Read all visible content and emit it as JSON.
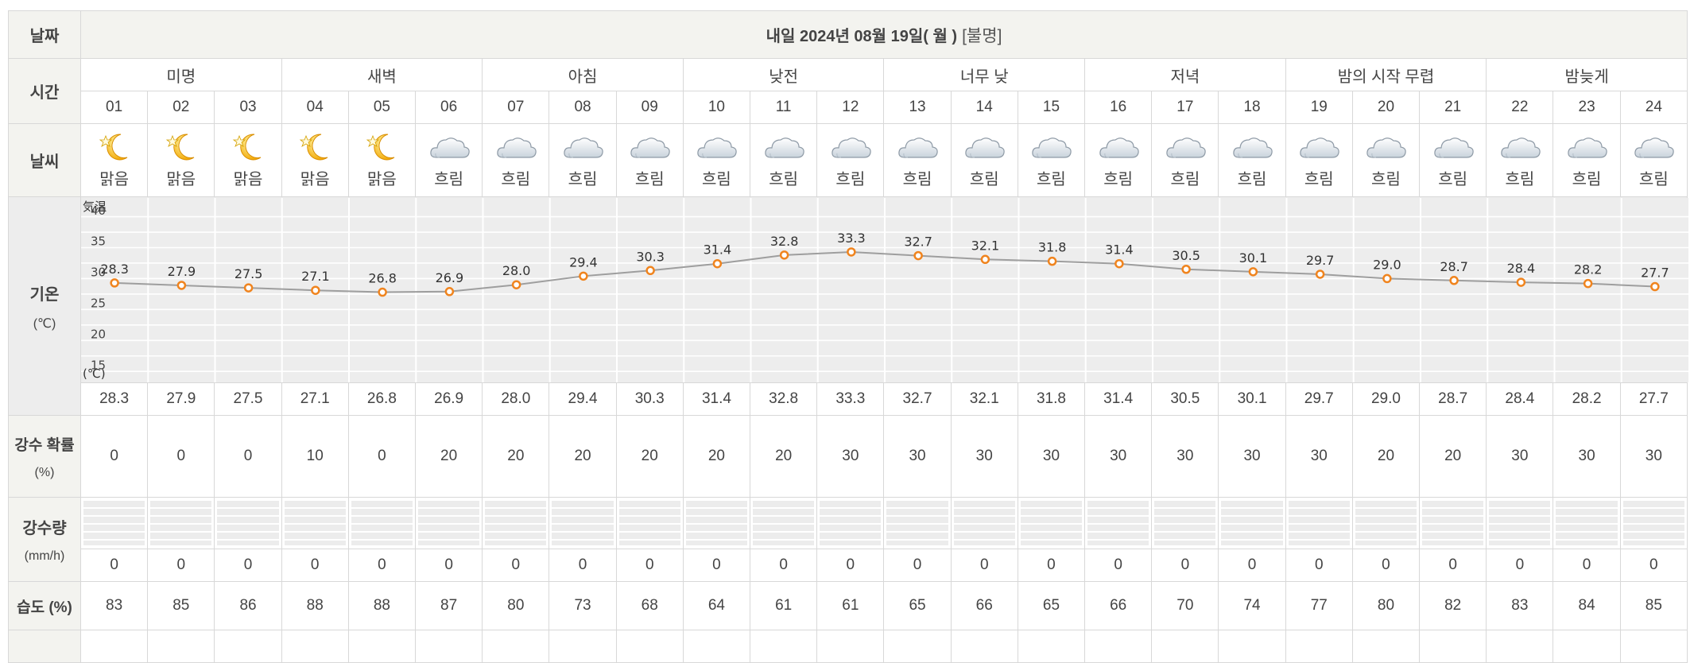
{
  "labels": {
    "date": "날짜",
    "time": "시간",
    "weather": "날씨",
    "temp": "기온",
    "temp_unit": "(℃)",
    "precip_prob": "강수 확률",
    "precip_prob_unit": "(%)",
    "precip": "강수량",
    "precip_unit": "(mm/h)",
    "humidity": "습도 (%)"
  },
  "header": {
    "date_text": "내일 2024년 08월 19일( 월 )",
    "condition": "[불명]"
  },
  "periods": [
    "미명",
    "새벽",
    "아침",
    "낮전",
    "너무 낮",
    "저녁",
    "밤의 시작 무렵",
    "밤늦게"
  ],
  "hours": [
    "01",
    "02",
    "03",
    "04",
    "05",
    "06",
    "07",
    "08",
    "09",
    "10",
    "11",
    "12",
    "13",
    "14",
    "15",
    "16",
    "17",
    "18",
    "19",
    "20",
    "21",
    "22",
    "23",
    "24"
  ],
  "weather": [
    {
      "icon": "moon-star-icon",
      "label": "맑음"
    },
    {
      "icon": "moon-star-icon",
      "label": "맑음"
    },
    {
      "icon": "moon-star-icon",
      "label": "맑음"
    },
    {
      "icon": "moon-star-icon",
      "label": "맑음"
    },
    {
      "icon": "moon-star-icon",
      "label": "맑음"
    },
    {
      "icon": "cloud-icon",
      "label": "흐림"
    },
    {
      "icon": "cloud-icon",
      "label": "흐림"
    },
    {
      "icon": "cloud-icon",
      "label": "흐림"
    },
    {
      "icon": "cloud-icon",
      "label": "흐림"
    },
    {
      "icon": "cloud-icon",
      "label": "흐림"
    },
    {
      "icon": "cloud-icon",
      "label": "흐림"
    },
    {
      "icon": "cloud-icon",
      "label": "흐림"
    },
    {
      "icon": "cloud-icon",
      "label": "흐림"
    },
    {
      "icon": "cloud-icon",
      "label": "흐림"
    },
    {
      "icon": "cloud-icon",
      "label": "흐림"
    },
    {
      "icon": "cloud-icon",
      "label": "흐림"
    },
    {
      "icon": "cloud-icon",
      "label": "흐림"
    },
    {
      "icon": "cloud-icon",
      "label": "흐림"
    },
    {
      "icon": "cloud-icon",
      "label": "흐림"
    },
    {
      "icon": "cloud-icon",
      "label": "흐림"
    },
    {
      "icon": "cloud-icon",
      "label": "흐림"
    },
    {
      "icon": "cloud-icon",
      "label": "흐림"
    },
    {
      "icon": "cloud-icon",
      "label": "흐림"
    },
    {
      "icon": "cloud-icon",
      "label": "흐림"
    }
  ],
  "temperatures": [
    "28.3",
    "27.9",
    "27.5",
    "27.1",
    "26.8",
    "26.9",
    "28.0",
    "29.4",
    "30.3",
    "31.4",
    "32.8",
    "33.3",
    "32.7",
    "32.1",
    "31.8",
    "31.4",
    "30.5",
    "30.1",
    "29.7",
    "29.0",
    "28.7",
    "28.4",
    "28.2",
    "27.7"
  ],
  "precip_probability": [
    "0",
    "0",
    "0",
    "10",
    "0",
    "20",
    "20",
    "20",
    "20",
    "20",
    "20",
    "30",
    "30",
    "30",
    "30",
    "30",
    "30",
    "30",
    "30",
    "20",
    "20",
    "30",
    "30",
    "30"
  ],
  "precip_amount": [
    "0",
    "0",
    "0",
    "0",
    "0",
    "0",
    "0",
    "0",
    "0",
    "0",
    "0",
    "0",
    "0",
    "0",
    "0",
    "0",
    "0",
    "0",
    "0",
    "0",
    "0",
    "0",
    "0",
    "0"
  ],
  "humidity": [
    "83",
    "85",
    "86",
    "88",
    "88",
    "87",
    "80",
    "73",
    "68",
    "64",
    "61",
    "61",
    "65",
    "66",
    "65",
    "66",
    "70",
    "74",
    "77",
    "80",
    "82",
    "83",
    "84",
    "85"
  ],
  "colors": {
    "header_bg": "#f3f3ef",
    "chart_bg": "#ededed",
    "line": "#9e9e9e",
    "marker": "#f0841e"
  },
  "chart_data": {
    "type": "line",
    "y_title": "気温",
    "y_unit": "(℃)",
    "y_ticks": [
      "40",
      "35",
      "30",
      "25",
      "20",
      "15"
    ],
    "ylim": [
      13,
      41
    ],
    "grid": true,
    "x": [
      "01",
      "02",
      "03",
      "04",
      "05",
      "06",
      "07",
      "08",
      "09",
      "10",
      "11",
      "12",
      "13",
      "14",
      "15",
      "16",
      "17",
      "18",
      "19",
      "20",
      "21",
      "22",
      "23",
      "24"
    ],
    "series": [
      {
        "values": [
          28.3,
          27.9,
          27.5,
          27.1,
          26.8,
          26.9,
          28.0,
          29.4,
          30.3,
          31.4,
          32.8,
          33.3,
          32.7,
          32.1,
          31.8,
          31.4,
          30.5,
          30.1,
          29.7,
          29.0,
          28.7,
          28.4,
          28.2,
          27.7
        ],
        "labels": [
          "28.3",
          "27.9",
          "27.5",
          "27.1",
          "26.8",
          "26.9",
          "28.0",
          "29.4",
          "30.3",
          "31.4",
          "32.8",
          "33.3",
          "32.7",
          "32.1",
          "31.8",
          "31.4",
          "30.5",
          "30.1",
          "29.7",
          "29.0",
          "28.7",
          "28.4",
          "28.2",
          "27.7"
        ]
      }
    ]
  }
}
